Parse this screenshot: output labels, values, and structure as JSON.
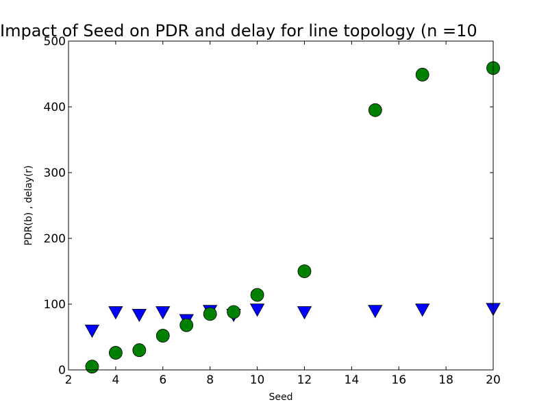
{
  "chart_data": {
    "type": "scatter",
    "title": "Impact of Seed on PDR and delay for line topology (n =10",
    "xlabel": "Seed",
    "ylabel": "PDR(b) , delay(r)",
    "xlim": [
      2,
      20
    ],
    "ylim": [
      0,
      500
    ],
    "xticks": [
      "2",
      "4",
      "6",
      "8",
      "10",
      "12",
      "14",
      "16",
      "18",
      "20"
    ],
    "yticks": [
      "0",
      "100",
      "200",
      "300",
      "400",
      "500"
    ],
    "grid": false,
    "legend": "none",
    "series": [
      {
        "color": "#0000ff",
        "marker": "triangle-down",
        "x": [
          3,
          4,
          5,
          6,
          7,
          8,
          9,
          10,
          12,
          15,
          17,
          20
        ],
        "y": [
          60,
          88,
          84,
          88,
          76,
          90,
          84,
          92,
          88,
          90,
          92,
          93
        ]
      },
      {
        "color": "#008000",
        "marker": "circle",
        "x": [
          3,
          4,
          5,
          6,
          7,
          8,
          9,
          10,
          12,
          15,
          17,
          20
        ],
        "y": [
          5,
          26,
          30,
          52,
          68,
          85,
          88,
          114,
          150,
          395,
          449,
          459
        ]
      }
    ]
  }
}
